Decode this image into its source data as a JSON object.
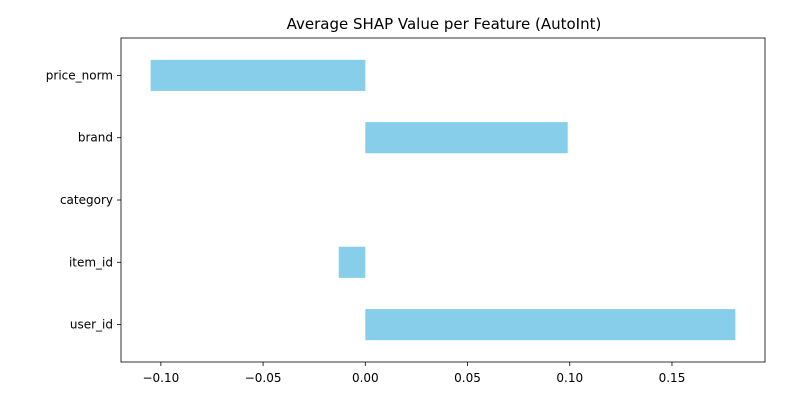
{
  "chart_data": {
    "type": "bar",
    "orientation": "horizontal",
    "title": "Average SHAP Value per Feature (AutoInt)",
    "xlabel": "",
    "ylabel": "",
    "categories": [
      "user_id",
      "item_id",
      "category",
      "brand",
      "price_norm"
    ],
    "values": [
      0.181,
      -0.013,
      0.0,
      0.099,
      -0.105
    ],
    "xlim": [
      -0.1195,
      0.1955
    ],
    "xticks": [
      -0.1,
      -0.05,
      0.0,
      0.05,
      0.1,
      0.15
    ],
    "xtick_labels": [
      "−0.10",
      "−0.05",
      "0.00",
      "0.05",
      "0.10",
      "0.15"
    ],
    "bar_color": "#87ceeb",
    "grid": false,
    "legend": "none"
  }
}
